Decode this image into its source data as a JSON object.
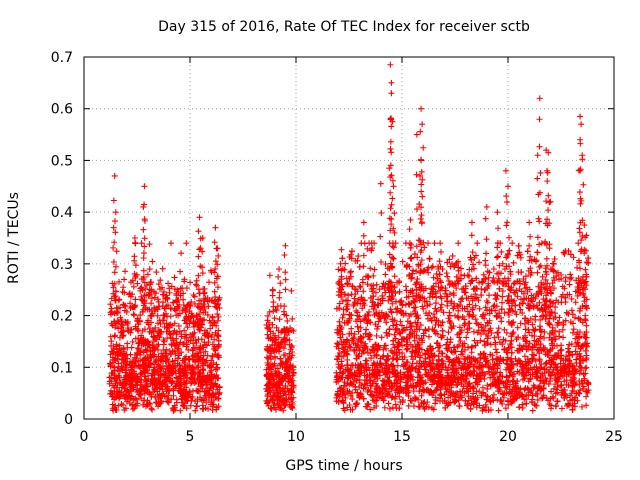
{
  "chart_data": {
    "type": "scatter",
    "title": "Day 315 of 2016, Rate Of TEC Index for receiver sctb",
    "xlabel": "GPS time / hours",
    "ylabel": "ROTI / TECUs",
    "xlim": [
      0,
      25
    ],
    "ylim": [
      0,
      0.7
    ],
    "x_ticks": [
      "0",
      "5",
      "10",
      "15",
      "20",
      "25"
    ],
    "y_ticks": [
      "0",
      "0.1",
      "0.2",
      "0.3",
      "0.4",
      "0.5",
      "0.6",
      "0.7"
    ],
    "grid": true,
    "marker": "+",
    "color": "#ff0000",
    "series": [
      {
        "name": "ROTI",
        "segments": [
          {
            "x_start": 1.2,
            "x_end": 6.4,
            "base": 0.08,
            "spread": 0.09
          },
          {
            "x_start": 8.6,
            "x_end": 9.9,
            "base": 0.07,
            "spread": 0.06
          },
          {
            "x_start": 11.9,
            "x_end": 23.8,
            "base": 0.09,
            "spread": 0.11
          }
        ],
        "peaks": [
          {
            "x": 1.45,
            "y": 0.47
          },
          {
            "x": 1.5,
            "y": 0.4
          },
          {
            "x": 1.4,
            "y": 0.37
          },
          {
            "x": 2.4,
            "y": 0.35
          },
          {
            "x": 2.85,
            "y": 0.45
          },
          {
            "x": 2.8,
            "y": 0.41
          },
          {
            "x": 3.1,
            "y": 0.29
          },
          {
            "x": 4.4,
            "y": 0.25
          },
          {
            "x": 5.45,
            "y": 0.39
          },
          {
            "x": 5.6,
            "y": 0.35
          },
          {
            "x": 6.2,
            "y": 0.37
          },
          {
            "x": 6.3,
            "y": 0.33
          },
          {
            "x": 8.9,
            "y": 0.25
          },
          {
            "x": 9.2,
            "y": 0.29
          },
          {
            "x": 9.5,
            "y": 0.335
          },
          {
            "x": 12.1,
            "y": 0.3
          },
          {
            "x": 13.2,
            "y": 0.38
          },
          {
            "x": 14.45,
            "y": 0.685
          },
          {
            "x": 14.5,
            "y": 0.65
          },
          {
            "x": 14.5,
            "y": 0.63
          },
          {
            "x": 14.45,
            "y": 0.58
          },
          {
            "x": 14.55,
            "y": 0.575
          },
          {
            "x": 14.6,
            "y": 0.45
          },
          {
            "x": 14.0,
            "y": 0.455
          },
          {
            "x": 15.9,
            "y": 0.6
          },
          {
            "x": 15.95,
            "y": 0.57
          },
          {
            "x": 15.7,
            "y": 0.55
          },
          {
            "x": 15.9,
            "y": 0.5
          },
          {
            "x": 15.85,
            "y": 0.47
          },
          {
            "x": 15.4,
            "y": 0.385
          },
          {
            "x": 16.8,
            "y": 0.34
          },
          {
            "x": 18.3,
            "y": 0.38
          },
          {
            "x": 19.0,
            "y": 0.41
          },
          {
            "x": 19.5,
            "y": 0.4
          },
          {
            "x": 19.9,
            "y": 0.48
          },
          {
            "x": 20.0,
            "y": 0.45
          },
          {
            "x": 21.0,
            "y": 0.38
          },
          {
            "x": 21.5,
            "y": 0.62
          },
          {
            "x": 21.4,
            "y": 0.51
          },
          {
            "x": 21.8,
            "y": 0.52
          },
          {
            "x": 21.9,
            "y": 0.515
          },
          {
            "x": 21.85,
            "y": 0.46
          },
          {
            "x": 22.0,
            "y": 0.42
          },
          {
            "x": 23.4,
            "y": 0.585
          },
          {
            "x": 23.45,
            "y": 0.57
          },
          {
            "x": 23.4,
            "y": 0.54
          },
          {
            "x": 23.5,
            "y": 0.51
          },
          {
            "x": 23.4,
            "y": 0.48
          },
          {
            "x": 23.6,
            "y": 0.375
          },
          {
            "x": 23.7,
            "y": 0.355
          }
        ]
      }
    ]
  }
}
